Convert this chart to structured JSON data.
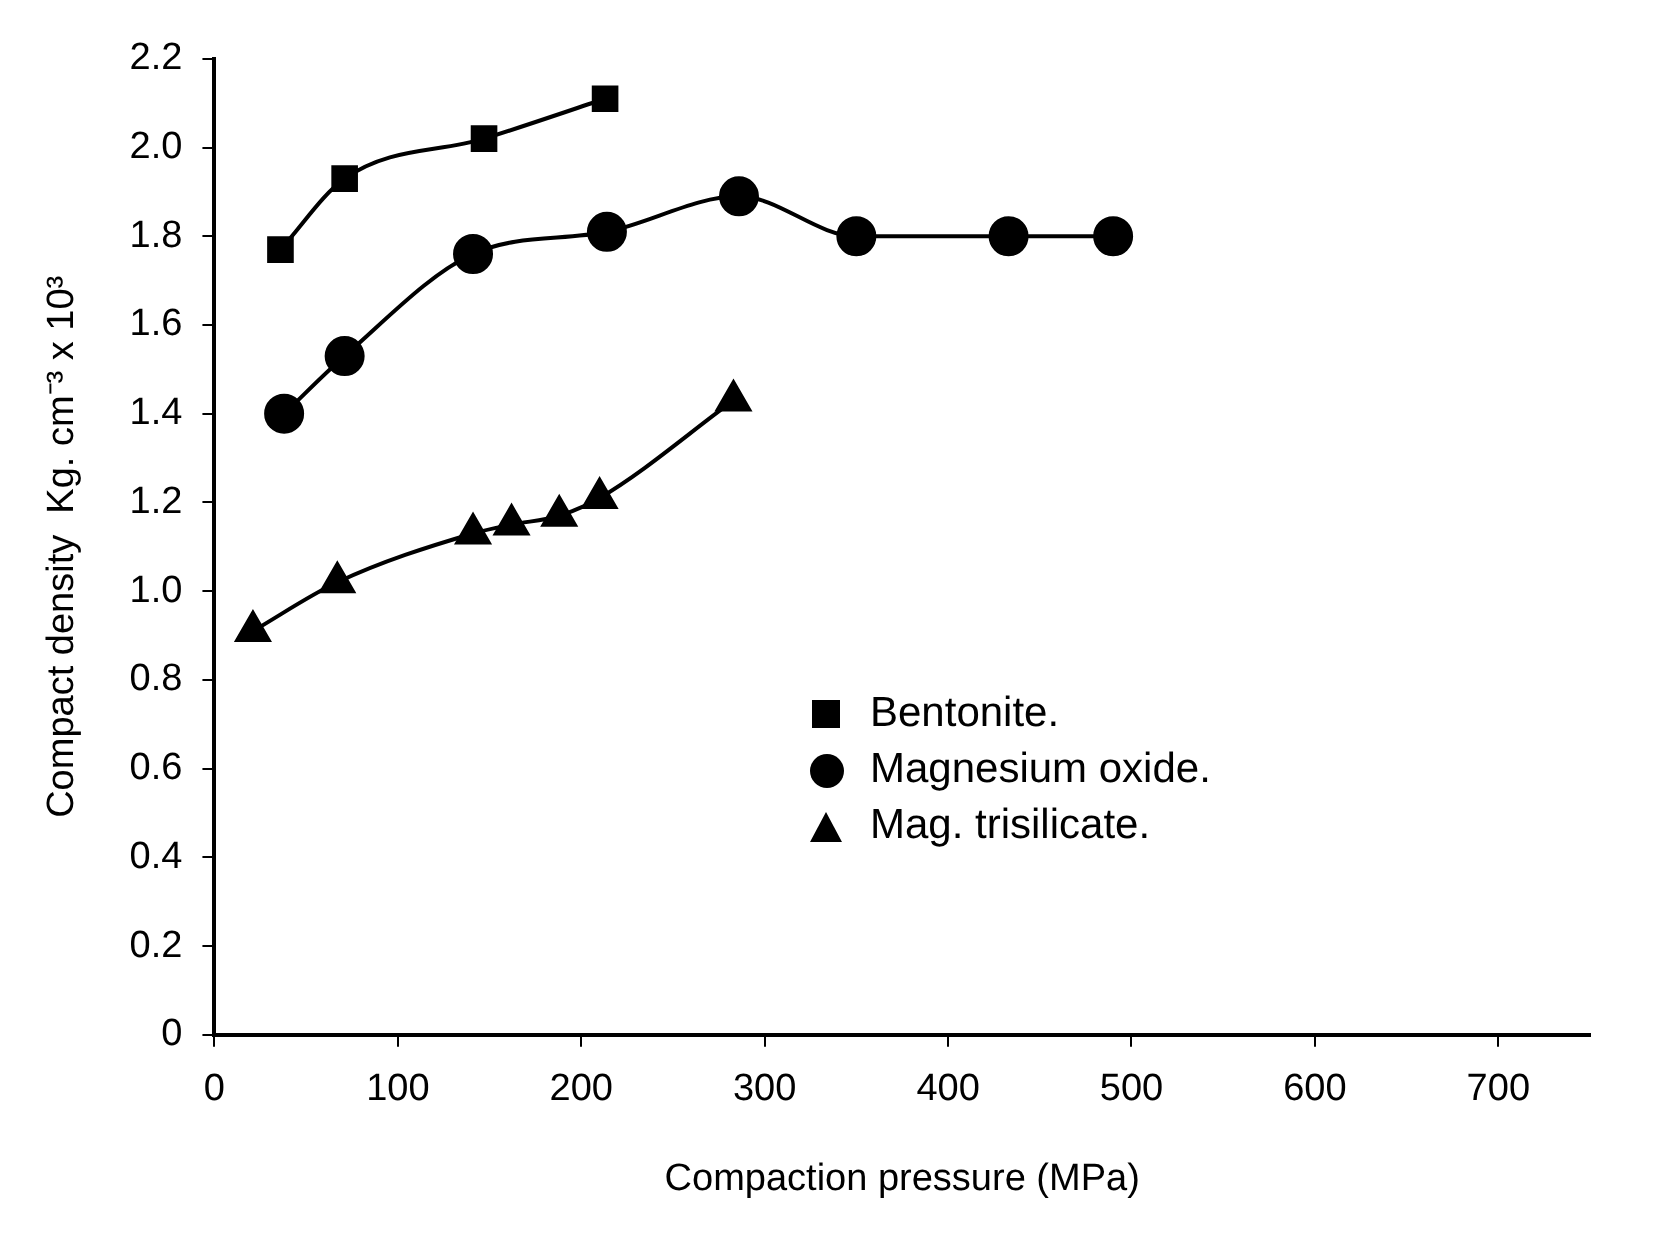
{
  "chart_data": {
    "type": "line",
    "xlabel": "Compaction pressure (MPa)",
    "ylabel": "Compact density  Kg. cm⁻³ x 10³",
    "xlim": [
      0,
      750
    ],
    "xticks": [
      0,
      100,
      200,
      300,
      400,
      500,
      600,
      700
    ],
    "ylim": [
      0,
      2.2
    ],
    "yticks": [
      0,
      0.2,
      0.4,
      0.6,
      0.8,
      {
        "value": 1,
        "label": "1.0"
      },
      1.2,
      1.4,
      1.6,
      1.8,
      {
        "value": 2,
        "label": "2.0"
      },
      2.2
    ],
    "grid": false,
    "legend": "right",
    "line_style": "solid",
    "series": [
      {
        "name": "Bentonite.",
        "color": "#000000",
        "marker": "square",
        "x": [
          36,
          71,
          147,
          213
        ],
        "values": [
          1.77,
          1.93,
          2.02,
          2.11
        ]
      },
      {
        "name": "Magnesium oxide.",
        "color": "#000000",
        "marker": "circle",
        "x": [
          38,
          71,
          141,
          214,
          286,
          350,
          433,
          490
        ],
        "values": [
          1.4,
          1.53,
          1.76,
          1.81,
          1.89,
          1.8,
          1.8,
          1.8
        ]
      },
      {
        "name": "Mag. trisilicate.",
        "color": "#000000",
        "marker": "triangle",
        "x": [
          21,
          67,
          141,
          162,
          188,
          210,
          283
        ],
        "values": [
          0.91,
          1.02,
          1.13,
          1.15,
          1.17,
          1.21,
          1.43
        ]
      }
    ]
  }
}
